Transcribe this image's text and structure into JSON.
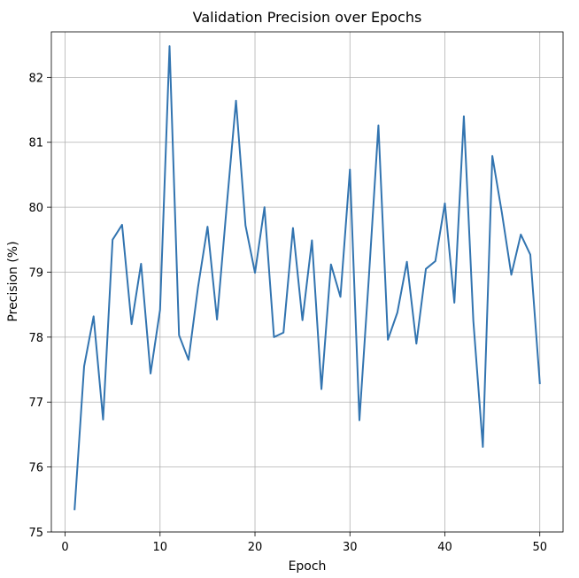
{
  "chart_data": {
    "type": "line",
    "title": "Validation Precision over Epochs",
    "xlabel": "Epoch",
    "ylabel": "Precision (%)",
    "xlim": [
      -1.45,
      52.45
    ],
    "ylim": [
      75.0,
      82.7
    ],
    "xticks": [
      0,
      10,
      20,
      30,
      40,
      50
    ],
    "yticks": [
      75,
      76,
      77,
      78,
      79,
      80,
      81,
      82
    ],
    "grid": true,
    "legend": "none",
    "series": [
      {
        "color": "#3274b0",
        "x": [
          1,
          2,
          3,
          4,
          5,
          6,
          7,
          8,
          9,
          10,
          11,
          12,
          13,
          14,
          15,
          16,
          17,
          18,
          19,
          20,
          21,
          22,
          23,
          24,
          25,
          26,
          27,
          28,
          29,
          30,
          31,
          32,
          33,
          34,
          35,
          36,
          37,
          38,
          39,
          40,
          41,
          42,
          43,
          44,
          45,
          46,
          47,
          48,
          49,
          50
        ],
        "values": [
          75.35,
          77.55,
          78.32,
          76.73,
          79.5,
          79.73,
          78.2,
          79.13,
          77.44,
          78.42,
          82.48,
          78.03,
          77.65,
          78.77,
          79.7,
          78.27,
          79.98,
          81.64,
          79.72,
          78.99,
          80.0,
          78.0,
          78.07,
          79.68,
          78.26,
          79.49,
          77.2,
          79.12,
          78.62,
          80.58,
          76.72,
          78.93,
          81.26,
          77.96,
          78.38,
          79.16,
          77.9,
          79.05,
          79.17,
          80.06,
          78.53,
          81.4,
          78.25,
          76.31,
          80.79,
          79.92,
          78.96,
          79.58,
          79.27,
          77.29
        ]
      }
    ]
  }
}
